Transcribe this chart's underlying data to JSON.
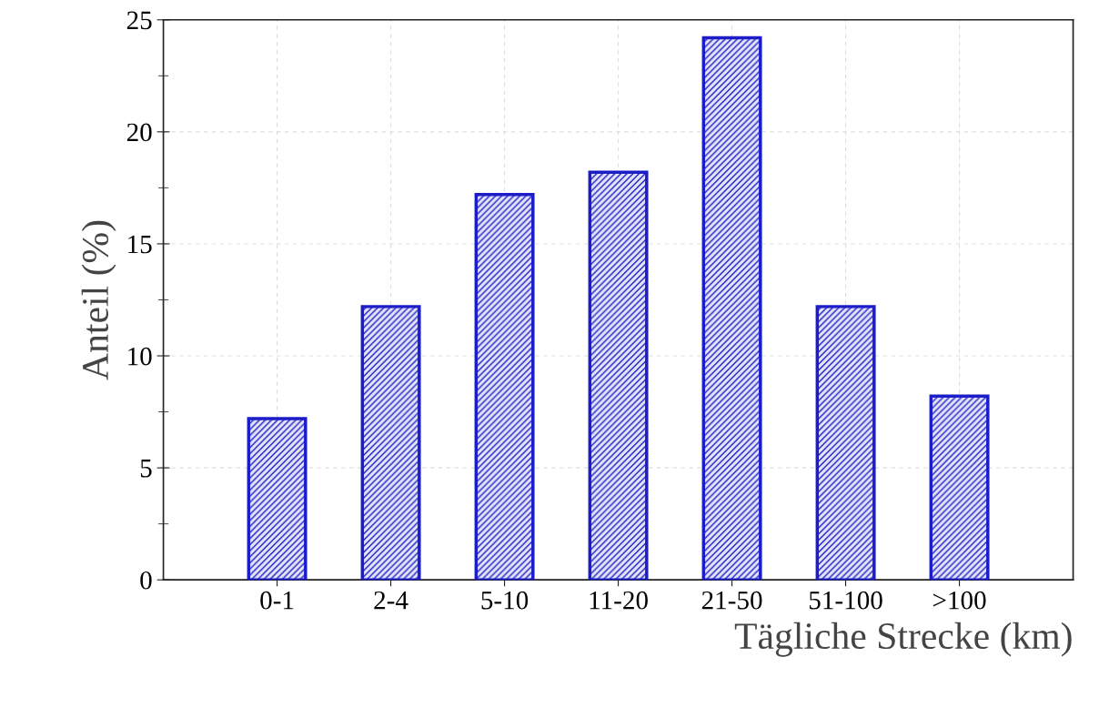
{
  "chart_data": {
    "type": "bar",
    "xlabel": "Tägliche Strecke (km)",
    "ylabel": "Anteil (%)",
    "categories": [
      "0-1",
      "2-4",
      "5-10",
      "11-20",
      "21-50",
      "51-100",
      ">100"
    ],
    "values": [
      7.2,
      12.2,
      17.2,
      18.2,
      24.2,
      12.2,
      8.2
    ],
    "color": "#1c1cc8",
    "ylim": [
      0,
      25
    ],
    "yticks": [
      0,
      {
        "value": 2.5,
        "label": null
      },
      5,
      {
        "value": 7.5,
        "label": null
      },
      10,
      {
        "value": 12.5,
        "label": null
      },
      15,
      {
        "value": 17.5,
        "label": null
      },
      20,
      {
        "value": 22.5,
        "label": null
      },
      25
    ],
    "grid": true
  }
}
